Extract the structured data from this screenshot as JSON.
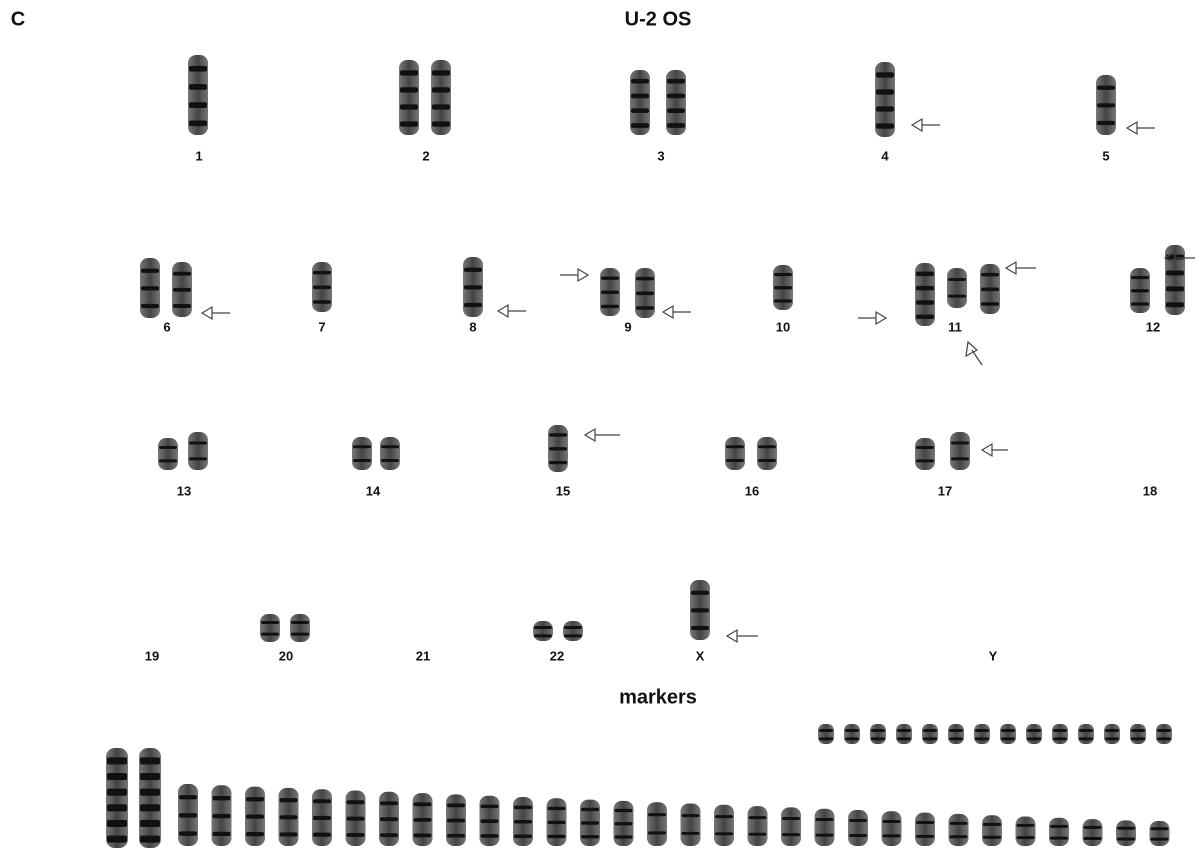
{
  "panel_label": "C",
  "title": "U-2 OS",
  "chromosome_labels": [
    "1",
    "2",
    "3",
    "4",
    "5",
    "6",
    "7",
    "8",
    "9",
    "10",
    "11",
    "12",
    "13",
    "14",
    "15",
    "16",
    "17",
    "18",
    "19",
    "20",
    "21",
    "22",
    "X",
    "Y"
  ],
  "markers_label": "markers"
}
